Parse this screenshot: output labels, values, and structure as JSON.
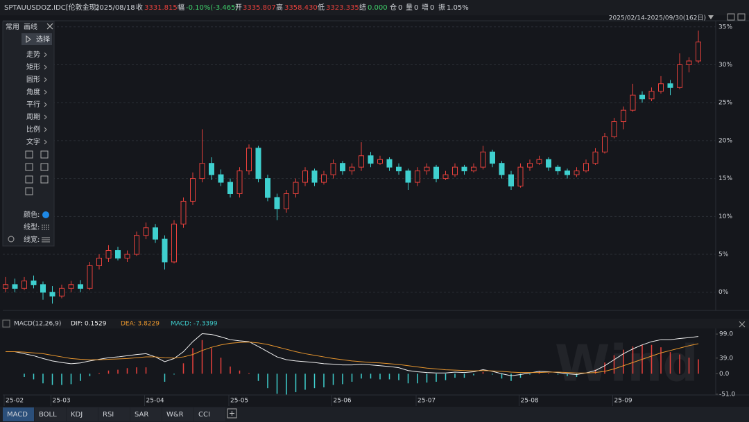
{
  "header": {
    "symbol": "SPTAUUSDOZ.IDC[伦敦金现]",
    "date": "2025/08/18",
    "fields": [
      {
        "label": "收",
        "value": "3331.815"
      },
      {
        "label": "幅",
        "value": "-0.10%(-3.465)"
      },
      {
        "label": "开",
        "value": "3335.807"
      },
      {
        "label": "高",
        "value": "3358.430"
      },
      {
        "label": "低",
        "value": "3323.335"
      },
      {
        "label": "结",
        "value": "0.000"
      },
      {
        "label": "仓",
        "value": "0"
      },
      {
        "label": "量",
        "value": "0"
      },
      {
        "label": "增",
        "value": "0"
      },
      {
        "label": "振",
        "value": "1.05%"
      }
    ],
    "range": "2025/02/14-2025/09/30(162日)"
  },
  "toolbar": {
    "tabs": [
      "常用",
      "画线"
    ],
    "select": "选择",
    "menu": [
      "走势",
      "矩形",
      "圆形",
      "角度",
      "平行",
      "周期",
      "比例",
      "文字"
    ],
    "settings": [
      "颜色:",
      "线型:",
      "线宽:"
    ]
  },
  "tabs": [
    "MACD",
    "BOLL",
    "KDJ",
    "RSI",
    "SAR",
    "W&R",
    "CCI"
  ],
  "watermark": "Wind",
  "chart_data": [
    {
      "type": "candlestick",
      "up_color": "#e8413c",
      "down_color": "#3fd0cf",
      "grid": true,
      "ylim": [
        -2.4,
        35.8
      ],
      "yticks": [
        {
          "value": 0,
          "label": "0%"
        },
        {
          "value": 5,
          "label": "5%"
        },
        {
          "value": 10,
          "label": "10%"
        },
        {
          "value": 15,
          "label": "15%"
        },
        {
          "value": 20,
          "label": "20%"
        },
        {
          "value": 25,
          "label": "25%"
        },
        {
          "value": 30,
          "label": "30%"
        },
        {
          "value": 35,
          "label": "35%"
        }
      ],
      "xticks": [
        {
          "value": 0,
          "label": "25-02"
        },
        {
          "value": 5,
          "label": "25-03"
        },
        {
          "value": 15,
          "label": "25-04"
        },
        {
          "value": 24,
          "label": "25-05"
        },
        {
          "value": 35,
          "label": "25-06"
        },
        {
          "value": 44,
          "label": "25-07"
        },
        {
          "value": 55,
          "label": "25-08"
        },
        {
          "value": 65,
          "label": "25-09"
        }
      ],
      "candles": [
        [
          0.5,
          2,
          0,
          1
        ],
        [
          1,
          1.8,
          0,
          0.5
        ],
        [
          0.5,
          2,
          0.3,
          1.5
        ],
        [
          1.5,
          2.2,
          0.5,
          1
        ],
        [
          1,
          1.4,
          -1,
          0
        ],
        [
          0,
          0.8,
          -1.5,
          -0.5
        ],
        [
          -0.5,
          1,
          -0.8,
          0.5
        ],
        [
          0.5,
          1.5,
          0,
          1
        ],
        [
          1,
          1.6,
          0,
          0.5
        ],
        [
          0.5,
          4,
          0.3,
          3.5
        ],
        [
          3.5,
          5,
          3,
          4.5
        ],
        [
          4.5,
          6.2,
          4,
          5.5
        ],
        [
          5.5,
          6,
          4.2,
          4.5
        ],
        [
          4.5,
          5.5,
          4,
          5
        ],
        [
          5,
          8,
          4.8,
          7.5
        ],
        [
          7.5,
          9.2,
          7,
          8.5
        ],
        [
          8.5,
          9,
          6.5,
          7
        ],
        [
          7,
          7.5,
          3,
          4
        ],
        [
          4,
          9.5,
          3.8,
          9
        ],
        [
          9,
          12.5,
          8.5,
          12
        ],
        [
          12,
          15.8,
          11.5,
          15
        ],
        [
          15,
          21.5,
          14.5,
          17
        ],
        [
          17,
          17.8,
          14.8,
          15.5
        ],
        [
          15.5,
          16.2,
          14,
          14.5
        ],
        [
          14.5,
          15,
          12.5,
          13
        ],
        [
          13,
          16.5,
          12.5,
          16
        ],
        [
          16,
          19.5,
          15.5,
          19
        ],
        [
          19,
          19.3,
          14.5,
          15
        ],
        [
          15,
          15.5,
          12,
          12.5
        ],
        [
          12.5,
          13,
          9.5,
          11
        ],
        [
          11,
          13.5,
          10.5,
          13
        ],
        [
          13,
          15,
          12.5,
          14.5
        ],
        [
          14.5,
          16.5,
          14,
          16
        ],
        [
          16,
          16.3,
          14,
          14.5
        ],
        [
          14.5,
          16,
          14.2,
          15.5
        ],
        [
          15.5,
          17.5,
          15,
          17
        ],
        [
          17,
          17.3,
          15.5,
          16
        ],
        [
          16,
          17,
          15.5,
          16.5
        ],
        [
          16.5,
          19.8,
          16,
          18
        ],
        [
          18,
          18.5,
          16.5,
          17
        ],
        [
          17,
          18,
          16.8,
          17.5
        ],
        [
          17.5,
          17.8,
          16,
          16.5
        ],
        [
          16.5,
          17,
          15.5,
          16
        ],
        [
          16,
          16.3,
          13.5,
          14.5
        ],
        [
          14.5,
          16.5,
          14,
          16
        ],
        [
          16,
          17,
          15.5,
          16.5
        ],
        [
          16.5,
          16.8,
          14.5,
          15
        ],
        [
          15,
          16,
          14.8,
          15.5
        ],
        [
          15.5,
          17,
          15.2,
          16.5
        ],
        [
          16.5,
          16.8,
          15.5,
          16
        ],
        [
          16,
          17,
          15.8,
          16.5
        ],
        [
          16.5,
          19.3,
          16.2,
          18.5
        ],
        [
          18.5,
          18.8,
          16.5,
          17
        ],
        [
          17,
          17.3,
          15,
          15.5
        ],
        [
          15.5,
          16,
          13.5,
          14
        ],
        [
          14,
          17,
          13.8,
          16.5
        ],
        [
          16.5,
          17.5,
          16,
          17
        ],
        [
          17,
          18,
          16.8,
          17.5
        ],
        [
          17.5,
          17.8,
          16,
          16.5
        ],
        [
          16.5,
          16.8,
          15.5,
          16
        ],
        [
          16,
          16.3,
          15,
          15.5
        ],
        [
          15.5,
          16.5,
          15.2,
          16
        ],
        [
          16,
          17.5,
          15.8,
          17
        ],
        [
          17,
          19,
          16.8,
          18.5
        ],
        [
          18.5,
          21,
          18.3,
          20.5
        ],
        [
          20.5,
          23,
          20.3,
          22.5
        ],
        [
          22.5,
          24.5,
          21.5,
          24
        ],
        [
          24,
          27.5,
          23.8,
          26
        ],
        [
          26,
          26.5,
          25,
          25.5
        ],
        [
          25.5,
          27,
          25.2,
          26.5
        ],
        [
          26.5,
          28.5,
          26.2,
          27.5
        ],
        [
          27.5,
          28,
          26,
          27
        ],
        [
          27,
          31.5,
          26.8,
          30
        ],
        [
          30,
          31,
          29,
          30.5
        ],
        [
          30.5,
          34.5,
          30.2,
          33
        ]
      ]
    },
    {
      "type": "macd",
      "title": "MACD(12,26,9)",
      "ylim": [
        -53,
        113
      ],
      "yticks": [
        {
          "value": 99,
          "label": "99.0"
        },
        {
          "value": 39,
          "label": "39.0"
        },
        {
          "value": 0,
          "label": "0.0"
        },
        {
          "value": -51,
          "label": "-51.0"
        }
      ],
      "series": [
        {
          "name": "DIF: 0.1529",
          "color": "#f2f2f2",
          "values": [
            55,
            55,
            50,
            45,
            38,
            32,
            28,
            25,
            27,
            32,
            36,
            40,
            42,
            45,
            48,
            50,
            42,
            30,
            38,
            55,
            80,
            100,
            98,
            92,
            85,
            82,
            80,
            68,
            55,
            42,
            35,
            32,
            30,
            28,
            25,
            24,
            22,
            22,
            24,
            22,
            20,
            18,
            15,
            8,
            5,
            3,
            2,
            2,
            4,
            3,
            5,
            10,
            6,
            0,
            -5,
            -2,
            2,
            6,
            5,
            3,
            0,
            -2,
            2,
            8,
            20,
            35,
            50,
            62,
            72,
            80,
            85,
            85,
            88,
            90,
            93
          ]
        },
        {
          "name": "DEA: 3.8229",
          "color": "#e8962e",
          "values": [
            55,
            55,
            54,
            52,
            50,
            46,
            42,
            38,
            36,
            35,
            35,
            36,
            37,
            38,
            40,
            42,
            42,
            40,
            39,
            42,
            48,
            58,
            66,
            72,
            76,
            78,
            79,
            77,
            73,
            67,
            61,
            55,
            50,
            46,
            42,
            38,
            35,
            32,
            30,
            28,
            27,
            25,
            23,
            20,
            17,
            14,
            12,
            10,
            9,
            8,
            7,
            8,
            7,
            6,
            4,
            3,
            3,
            3,
            4,
            4,
            3,
            2,
            2,
            3,
            6,
            12,
            20,
            28,
            36,
            44,
            52,
            58,
            64,
            70,
            75
          ]
        }
      ],
      "histogram": {
        "name": "MACD: -7.3399",
        "color": "#3fd0cf",
        "up_color": "#e8413c",
        "down_color": "#3fd0cf",
        "values": [
          0,
          0,
          -8,
          -14,
          -24,
          -28,
          -28,
          -26,
          -18,
          -6,
          2,
          8,
          10,
          14,
          16,
          16,
          0,
          -20,
          -2,
          26,
          64,
          84,
          64,
          40,
          18,
          8,
          2,
          -18,
          -36,
          -50,
          -52,
          -46,
          -40,
          -36,
          -34,
          -28,
          -26,
          -20,
          -12,
          -12,
          -14,
          -14,
          -16,
          -24,
          -24,
          -22,
          -20,
          -16,
          -10,
          -10,
          -4,
          4,
          -2,
          -12,
          -18,
          -10,
          -2,
          6,
          2,
          -2,
          -6,
          -8,
          0,
          10,
          28,
          46,
          60,
          68,
          72,
          72,
          66,
          54,
          48,
          40,
          36
        ]
      }
    }
  ]
}
